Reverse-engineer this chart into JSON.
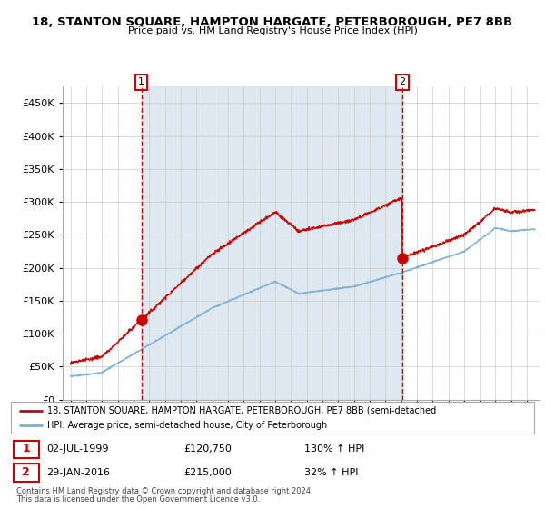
{
  "title": "18, STANTON SQUARE, HAMPTON HARGATE, PETERBOROUGH, PE7 8BB",
  "subtitle": "Price paid vs. HM Land Registry's House Price Index (HPI)",
  "legend_line1": "18, STANTON SQUARE, HAMPTON HARGATE, PETERBOROUGH, PE7 8BB (semi-detached",
  "legend_line2": "HPI: Average price, semi-detached house, City of Peterborough",
  "footnote1": "Contains HM Land Registry data © Crown copyright and database right 2024.",
  "footnote2": "This data is licensed under the Open Government Licence v3.0.",
  "sale1_date": "02-JUL-1999",
  "sale1_price": 120750,
  "sale1_hpi": "130% ↑ HPI",
  "sale2_date": "29-JAN-2016",
  "sale2_price": 215000,
  "sale2_hpi": "32% ↑ HPI",
  "sale1_x": 1999.5,
  "sale2_x": 2016.08,
  "red_color": "#cc0000",
  "blue_color": "#7bafd4",
  "shade_color": "#dde8f0",
  "ylim": [
    0,
    475000
  ],
  "xlim_start": 1994.5,
  "xlim_end": 2024.8
}
